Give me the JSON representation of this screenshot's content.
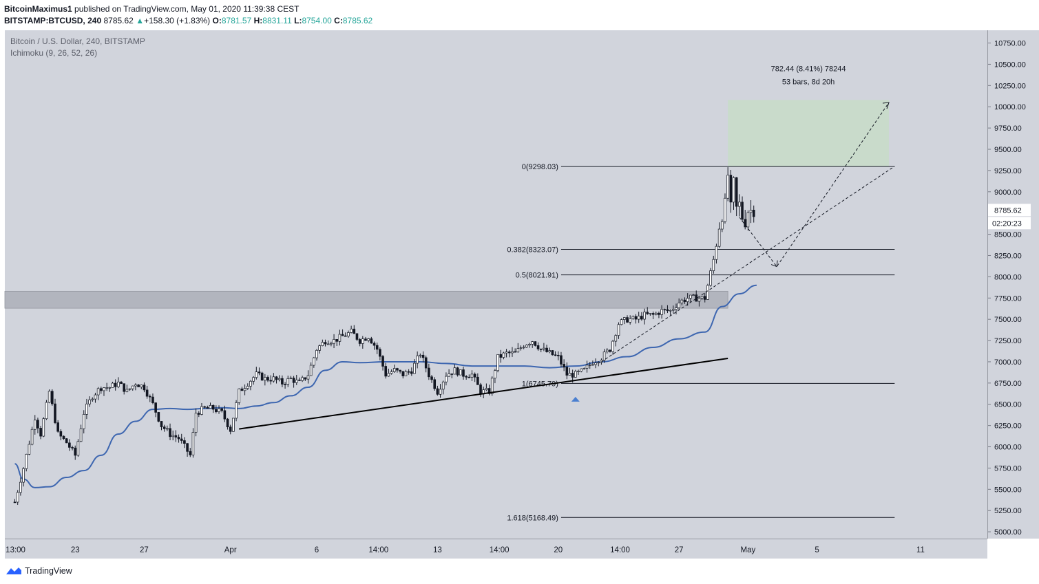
{
  "header": {
    "author": "BitcoinMaximus1",
    "published_text": "published on TradingView.com, May 01, 2020 11:39:38 CEST",
    "symbol": "BITSTAMP:BTCUSD, 240",
    "last": "8785.62",
    "change_arrow": "▲",
    "change": "+158.30 (+1.83%)",
    "o_label": "O:",
    "o_value": "8781.57",
    "h_label": "H:",
    "h_value": "8831.11",
    "l_label": "L:",
    "l_value": "8754.00",
    "c_label": "C:",
    "c_value": "8785.62"
  },
  "legend": {
    "title": "Bitcoin / U.S. Dollar, 240, BITSTAMP",
    "indicator": "Ichimoku (9, 26, 52, 26)"
  },
  "measure": {
    "line1": "782.44 (8.41%) 78244",
    "line2": "53 bars, 8d 20h",
    "y_low": 9298.03,
    "y_high": 10080
  },
  "price_label": "8785.62",
  "countdown": "02:20:23",
  "footer": {
    "brand": "TradingView"
  },
  "colors": {
    "background": "#d1d4dc",
    "baseline": "#3d66b0",
    "fib": "#131722",
    "resistance_zone": "#b2b5be",
    "measure_box": "#c8dcc9",
    "price_tag": "#ffffff"
  },
  "chart_data": {
    "type": "candlestick",
    "symbol": "BTCUSD",
    "timeframe": "240",
    "ylim": [
      4920,
      10900
    ],
    "y_ticks": [
      5000,
      5250,
      5500,
      5750,
      6000,
      6250,
      6500,
      6750,
      7000,
      7250,
      7500,
      7750,
      8000,
      8250,
      8500,
      9000,
      9250,
      9500,
      9750,
      10000,
      10250,
      10500,
      10750
    ],
    "y_tick_labels": [
      "5000.00",
      "5250.00",
      "5500.00",
      "5750.00",
      "6000.00",
      "6250.00",
      "6500.00",
      "6750.00",
      "7000.00",
      "7250.00",
      "7500.00",
      "7750.00",
      "8000.00",
      "8250.00",
      "8500.00",
      "9000.00",
      "9250.00",
      "9500.00",
      "9750.00",
      "10000.00",
      "10250.00",
      "10500.00",
      "10750.00"
    ],
    "x_start": "2020-03-19 12:00",
    "bar_hours": 4,
    "x_ticks": [
      {
        "date": "2020-03-19 13:00",
        "label": "13:00"
      },
      {
        "date": "2020-03-23 00:00",
        "label": "23"
      },
      {
        "date": "2020-03-27 00:00",
        "label": "27"
      },
      {
        "date": "2020-04-01 00:00",
        "label": "Apr"
      },
      {
        "date": "2020-04-06 00:00",
        "label": "6"
      },
      {
        "date": "2020-04-09 14:00",
        "label": "14:00"
      },
      {
        "date": "2020-04-13 00:00",
        "label": "13"
      },
      {
        "date": "2020-04-16 14:00",
        "label": "14:00"
      },
      {
        "date": "2020-04-20 00:00",
        "label": "20"
      },
      {
        "date": "2020-04-23 14:00",
        "label": "14:00"
      },
      {
        "date": "2020-04-27 00:00",
        "label": "27"
      },
      {
        "date": "2020-05-01 00:00",
        "label": "May"
      },
      {
        "date": "2020-05-05 00:00",
        "label": "5"
      },
      {
        "date": "2020-05-11 00:00",
        "label": "11"
      }
    ],
    "close_anchors": [
      [
        "2020-03-19 12:00",
        5350
      ],
      [
        "2020-03-20 00:00",
        5750
      ],
      [
        "2020-03-20 16:00",
        6350
      ],
      [
        "2020-03-21 00:00",
        6150
      ],
      [
        "2020-03-21 12:00",
        6650
      ],
      [
        "2020-03-22 00:00",
        6150
      ],
      [
        "2020-03-22 12:00",
        6050
      ],
      [
        "2020-03-23 00:00",
        5900
      ],
      [
        "2020-03-23 12:00",
        6400
      ],
      [
        "2020-03-24 00:00",
        6600
      ],
      [
        "2020-03-24 12:00",
        6700
      ],
      [
        "2020-03-25 00:00",
        6700
      ],
      [
        "2020-03-25 12:00",
        6750
      ],
      [
        "2020-03-26 00:00",
        6650
      ],
      [
        "2020-03-26 12:00",
        6750
      ],
      [
        "2020-03-27 00:00",
        6700
      ],
      [
        "2020-03-27 12:00",
        6500
      ],
      [
        "2020-03-28 00:00",
        6250
      ],
      [
        "2020-03-28 12:00",
        6150
      ],
      [
        "2020-03-29 00:00",
        6100
      ],
      [
        "2020-03-29 16:00",
        5900
      ],
      [
        "2020-03-30 00:00",
        6400
      ],
      [
        "2020-03-30 12:00",
        6450
      ],
      [
        "2020-03-31 00:00",
        6450
      ],
      [
        "2020-03-31 12:00",
        6400
      ],
      [
        "2020-04-01 00:00",
        6200
      ],
      [
        "2020-04-01 12:00",
        6650
      ],
      [
        "2020-04-02 00:00",
        6750
      ],
      [
        "2020-04-02 12:00",
        6850
      ],
      [
        "2020-04-03 00:00",
        6800
      ],
      [
        "2020-04-03 12:00",
        6800
      ],
      [
        "2020-04-04 00:00",
        6750
      ],
      [
        "2020-04-04 12:00",
        6800
      ],
      [
        "2020-04-05 00:00",
        6750
      ],
      [
        "2020-04-05 12:00",
        6850
      ],
      [
        "2020-04-06 00:00",
        7150
      ],
      [
        "2020-04-06 12:00",
        7250
      ],
      [
        "2020-04-07 00:00",
        7250
      ],
      [
        "2020-04-07 12:00",
        7300
      ],
      [
        "2020-04-08 00:00",
        7350
      ],
      [
        "2020-04-08 12:00",
        7250
      ],
      [
        "2020-04-09 00:00",
        7300
      ],
      [
        "2020-04-09 12:00",
        7150
      ],
      [
        "2020-04-10 00:00",
        6850
      ],
      [
        "2020-04-10 12:00",
        6900
      ],
      [
        "2020-04-11 00:00",
        6850
      ],
      [
        "2020-04-11 12:00",
        6900
      ],
      [
        "2020-04-12 00:00",
        7100
      ],
      [
        "2020-04-12 12:00",
        6850
      ],
      [
        "2020-04-13 00:00",
        6650
      ],
      [
        "2020-04-13 12:00",
        6850
      ],
      [
        "2020-04-14 00:00",
        6900
      ],
      [
        "2020-04-14 12:00",
        6850
      ],
      [
        "2020-04-15 00:00",
        6850
      ],
      [
        "2020-04-15 12:00",
        6650
      ],
      [
        "2020-04-16 00:00",
        6650
      ],
      [
        "2020-04-16 12:00",
        7050
      ],
      [
        "2020-04-17 00:00",
        7100
      ],
      [
        "2020-04-17 12:00",
        7100
      ],
      [
        "2020-04-18 00:00",
        7200
      ],
      [
        "2020-04-18 12:00",
        7250
      ],
      [
        "2020-04-19 00:00",
        7150
      ],
      [
        "2020-04-19 12:00",
        7100
      ],
      [
        "2020-04-20 00:00",
        7050
      ],
      [
        "2020-04-20 12:00",
        6850
      ],
      [
        "2020-04-21 00:00",
        6850
      ],
      [
        "2020-04-21 12:00",
        6900
      ],
      [
        "2020-04-22 00:00",
        7000
      ],
      [
        "2020-04-22 12:00",
        7050
      ],
      [
        "2020-04-23 00:00",
        7150
      ],
      [
        "2020-04-23 12:00",
        7450
      ],
      [
        "2020-04-24 00:00",
        7500
      ],
      [
        "2020-04-24 12:00",
        7500
      ],
      [
        "2020-04-25 00:00",
        7550
      ],
      [
        "2020-04-25 12:00",
        7550
      ],
      [
        "2020-04-26 00:00",
        7600
      ],
      [
        "2020-04-26 12:00",
        7600
      ],
      [
        "2020-04-27 00:00",
        7700
      ],
      [
        "2020-04-27 12:00",
        7750
      ],
      [
        "2020-04-28 00:00",
        7750
      ],
      [
        "2020-04-28 12:00",
        7750
      ],
      [
        "2020-04-29 00:00",
        8200
      ],
      [
        "2020-04-29 08:00",
        8600
      ],
      [
        "2020-04-29 16:00",
        8850
      ],
      [
        "2020-04-29 20:00",
        9200
      ],
      [
        "2020-04-30 00:00",
        8800
      ],
      [
        "2020-04-30 04:00",
        9100
      ],
      [
        "2020-04-30 08:00",
        8800
      ],
      [
        "2020-04-30 12:00",
        8850
      ],
      [
        "2020-04-30 16:00",
        8700
      ],
      [
        "2020-04-30 20:00",
        8650
      ],
      [
        "2020-05-01 00:00",
        8780
      ],
      [
        "2020-05-01 08:00",
        8786
      ]
    ],
    "baseline_anchors": [
      [
        "2020-03-19 12:00",
        5800
      ],
      [
        "2020-03-20 00:00",
        5620
      ],
      [
        "2020-03-20 16:00",
        5520
      ],
      [
        "2020-03-21 12:00",
        5530
      ],
      [
        "2020-03-22 12:00",
        5640
      ],
      [
        "2020-03-23 12:00",
        5720
      ],
      [
        "2020-03-24 12:00",
        5900
      ],
      [
        "2020-03-25 12:00",
        6150
      ],
      [
        "2020-03-26 12:00",
        6300
      ],
      [
        "2020-03-27 12:00",
        6440
      ],
      [
        "2020-03-28 12:00",
        6450
      ],
      [
        "2020-03-29 12:00",
        6440
      ],
      [
        "2020-03-30 12:00",
        6450
      ],
      [
        "2020-03-31 12:00",
        6460
      ],
      [
        "2020-04-01 12:00",
        6450
      ],
      [
        "2020-04-02 12:00",
        6480
      ],
      [
        "2020-04-03 12:00",
        6520
      ],
      [
        "2020-04-04 12:00",
        6600
      ],
      [
        "2020-04-05 12:00",
        6700
      ],
      [
        "2020-04-06 12:00",
        6900
      ],
      [
        "2020-04-07 12:00",
        7000
      ],
      [
        "2020-04-08 12:00",
        6990
      ],
      [
        "2020-04-10 00:00",
        7000
      ],
      [
        "2020-04-12 00:00",
        7000
      ],
      [
        "2020-04-13 12:00",
        6980
      ],
      [
        "2020-04-15 00:00",
        6950
      ],
      [
        "2020-04-16 12:00",
        6950
      ],
      [
        "2020-04-18 00:00",
        6950
      ],
      [
        "2020-04-19 12:00",
        6930
      ],
      [
        "2020-04-21 00:00",
        6950
      ],
      [
        "2020-04-22 12:00",
        7000
      ],
      [
        "2020-04-24 00:00",
        7060
      ],
      [
        "2020-04-25 12:00",
        7170
      ],
      [
        "2020-04-27 00:00",
        7270
      ],
      [
        "2020-04-28 12:00",
        7350
      ],
      [
        "2020-04-29 12:00",
        7650
      ],
      [
        "2020-04-30 12:00",
        7800
      ],
      [
        "2020-05-01 12:00",
        7900
      ]
    ],
    "fib_levels": [
      {
        "label": "0(9298.03)",
        "value": 9298.03
      },
      {
        "label": "0.382(8323.07)",
        "value": 8323.07
      },
      {
        "label": "0.5(8021.91)",
        "value": 8021.91
      },
      {
        "label": "1(6745.79)",
        "value": 6745.79
      },
      {
        "label": "1.618(5168.49)",
        "value": 5168.49
      }
    ],
    "fib_x_range": [
      "2020-04-20 04:00",
      "2020-05-09 12:00"
    ],
    "resistance_zone": {
      "low": 7630,
      "high": 7830,
      "x_end": "2020-04-29 20:00"
    },
    "trendline": [
      [
        "2020-04-01 12:00",
        6210
      ],
      [
        "2020-04-29 20:00",
        7040
      ]
    ],
    "projection_path": [
      [
        "2020-04-30 12:00",
        8700
      ],
      [
        "2020-05-02 16:00",
        8120
      ],
      [
        "2020-05-09 04:00",
        10050
      ]
    ],
    "projection_line": [
      [
        "2020-04-22 12:00",
        7000
      ],
      [
        "2020-05-09 12:00",
        9300
      ]
    ],
    "arrow_marker": {
      "date": "2020-04-21 00:00",
      "value": 6580
    }
  }
}
